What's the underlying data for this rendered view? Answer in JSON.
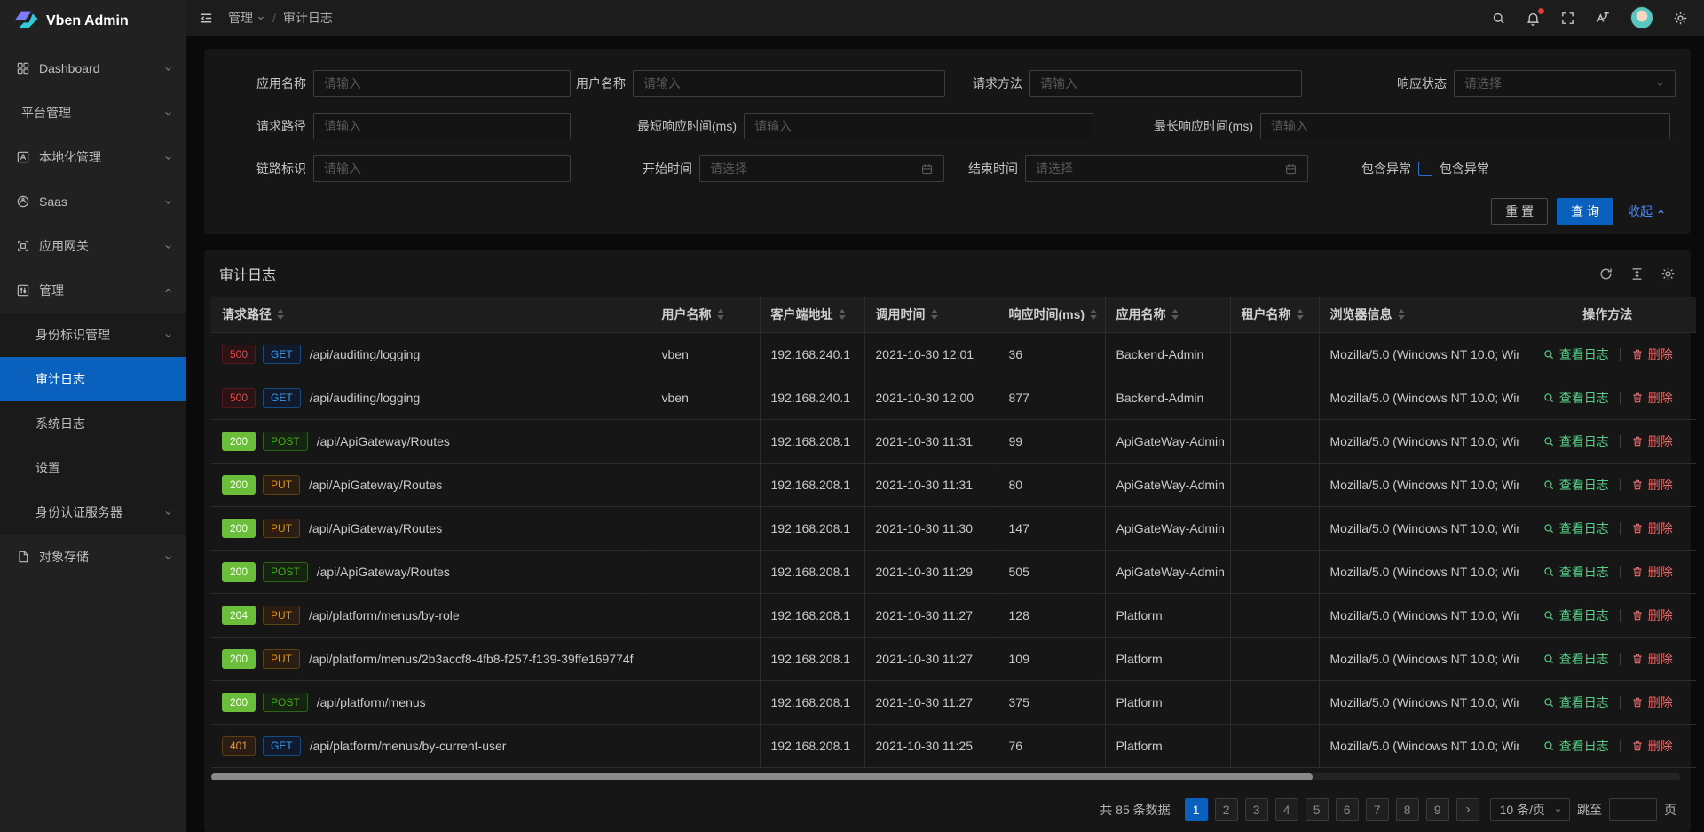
{
  "brand": {
    "name": "Vben Admin"
  },
  "header": {
    "breadcrumb": {
      "parent": "管理",
      "current": "审计日志",
      "separator": "/"
    }
  },
  "sidebar": {
    "items": [
      {
        "label": "Dashboard",
        "icon": "dashboard-icon",
        "chevron": "down",
        "level": 1
      },
      {
        "label": "平台管理",
        "chevron": "down",
        "level": 1,
        "no_icon": true
      },
      {
        "label": "本地化管理",
        "icon": "localization-icon",
        "chevron": "down",
        "level": 1
      },
      {
        "label": "Saas",
        "icon": "saas-icon",
        "chevron": "down",
        "level": 1
      },
      {
        "label": "应用网关",
        "icon": "gateway-icon",
        "chevron": "down",
        "level": 1
      },
      {
        "label": "管理",
        "icon": "management-icon",
        "chevron": "up",
        "level": 1,
        "expanded": true
      },
      {
        "label": "身份标识管理",
        "chevron": "down",
        "level": 2
      },
      {
        "label": "审计日志",
        "level": 2,
        "active": true
      },
      {
        "label": "系统日志",
        "level": 2
      },
      {
        "label": "设置",
        "level": 2
      },
      {
        "label": "身份认证服务器",
        "chevron": "down",
        "level": 2
      },
      {
        "label": "对象存储",
        "icon": "storage-icon",
        "chevron": "down",
        "level": 1
      }
    ]
  },
  "filter": {
    "rows": [
      [
        {
          "label": "应用名称",
          "ph": "请输入",
          "type": "text"
        },
        {
          "label": "用户名称",
          "ph": "请输入",
          "type": "text"
        },
        {
          "label": "请求方法",
          "ph": "请输入",
          "type": "text"
        },
        {
          "label": "响应状态",
          "ph": "请选择",
          "type": "select"
        }
      ],
      [
        {
          "label": "请求路径",
          "ph": "请输入",
          "type": "text"
        },
        {
          "label": "最短响应时间(ms)",
          "ph": "请输入",
          "type": "text"
        },
        {
          "label": "最长响应时间(ms)",
          "ph": "请输入",
          "type": "text"
        }
      ],
      [
        {
          "label": "链路标识",
          "ph": "请输入",
          "type": "text"
        },
        {
          "label": "开始时间",
          "ph": "请选择",
          "type": "date"
        },
        {
          "label": "结束时间",
          "ph": "请选择",
          "type": "date"
        },
        {
          "label": "包含异常",
          "type": "checkbox",
          "cb_label": "包含异常"
        }
      ]
    ],
    "reset_label": "重 置",
    "search_label": "查 询",
    "collapse_label": "收起"
  },
  "table": {
    "title": "审计日志",
    "columns": [
      {
        "label": "请求路径",
        "sortable": true
      },
      {
        "label": "用户名称",
        "sortable": true
      },
      {
        "label": "客户端地址",
        "sortable": true
      },
      {
        "label": "调用时间",
        "sortable": true
      },
      {
        "label": "响应时间(ms)",
        "sortable": true
      },
      {
        "label": "应用名称",
        "sortable": true
      },
      {
        "label": "租户名称",
        "sortable": true
      },
      {
        "label": "浏览器信息",
        "sortable": true
      },
      {
        "label": "操作方法",
        "sortable": false
      }
    ],
    "rows": [
      {
        "status": "500",
        "method": "GET",
        "path": "/api/auditing/logging",
        "user": "vben",
        "ip": "192.168.240.1",
        "time": "2021-10-30 12:01",
        "ms": "36",
        "app": "Backend-Admin",
        "tenant": "",
        "browser": "Mozilla/5.0 (Windows NT 10.0; Win"
      },
      {
        "status": "500",
        "method": "GET",
        "path": "/api/auditing/logging",
        "user": "vben",
        "ip": "192.168.240.1",
        "time": "2021-10-30 12:00",
        "ms": "877",
        "app": "Backend-Admin",
        "tenant": "",
        "browser": "Mozilla/5.0 (Windows NT 10.0; Win"
      },
      {
        "status": "200",
        "method": "POST",
        "path": "/api/ApiGateway/Routes",
        "user": "",
        "ip": "192.168.208.1",
        "time": "2021-10-30 11:31",
        "ms": "99",
        "app": "ApiGateWay-Admin",
        "tenant": "",
        "browser": "Mozilla/5.0 (Windows NT 10.0; Win"
      },
      {
        "status": "200",
        "method": "PUT",
        "path": "/api/ApiGateway/Routes",
        "user": "",
        "ip": "192.168.208.1",
        "time": "2021-10-30 11:31",
        "ms": "80",
        "app": "ApiGateWay-Admin",
        "tenant": "",
        "browser": "Mozilla/5.0 (Windows NT 10.0; Win"
      },
      {
        "status": "200",
        "method": "PUT",
        "path": "/api/ApiGateway/Routes",
        "user": "",
        "ip": "192.168.208.1",
        "time": "2021-10-30 11:30",
        "ms": "147",
        "app": "ApiGateWay-Admin",
        "tenant": "",
        "browser": "Mozilla/5.0 (Windows NT 10.0; Win"
      },
      {
        "status": "200",
        "method": "POST",
        "path": "/api/ApiGateway/Routes",
        "user": "",
        "ip": "192.168.208.1",
        "time": "2021-10-30 11:29",
        "ms": "505",
        "app": "ApiGateWay-Admin",
        "tenant": "",
        "browser": "Mozilla/5.0 (Windows NT 10.0; Win"
      },
      {
        "status": "204",
        "method": "PUT",
        "path": "/api/platform/menus/by-role",
        "user": "",
        "ip": "192.168.208.1",
        "time": "2021-10-30 11:27",
        "ms": "128",
        "app": "Platform",
        "tenant": "",
        "browser": "Mozilla/5.0 (Windows NT 10.0; Win"
      },
      {
        "status": "200",
        "method": "PUT",
        "path": "/api/platform/menus/2b3accf8-4fb8-f257-f139-39ffe169774f",
        "user": "",
        "ip": "192.168.208.1",
        "time": "2021-10-30 11:27",
        "ms": "109",
        "app": "Platform",
        "tenant": "",
        "browser": "Mozilla/5.0 (Windows NT 10.0; Win"
      },
      {
        "status": "200",
        "method": "POST",
        "path": "/api/platform/menus",
        "user": "",
        "ip": "192.168.208.1",
        "time": "2021-10-30 11:27",
        "ms": "375",
        "app": "Platform",
        "tenant": "",
        "browser": "Mozilla/5.0 (Windows NT 10.0; Win"
      },
      {
        "status": "401",
        "method": "GET",
        "path": "/api/platform/menus/by-current-user",
        "user": "",
        "ip": "192.168.208.1",
        "time": "2021-10-30 11:25",
        "ms": "76",
        "app": "Platform",
        "tenant": "",
        "browser": "Mozilla/5.0 (Windows NT 10.0; Win"
      }
    ],
    "actions": {
      "view": "查看日志",
      "delete": "删除"
    }
  },
  "pagination": {
    "total": "共 85 条数据",
    "pages": [
      "1",
      "2",
      "3",
      "4",
      "5",
      "6",
      "7",
      "8",
      "9"
    ],
    "active": "1",
    "page_size": "10 条/页",
    "jump_label": "跳至",
    "page_unit": "页"
  },
  "colors": {
    "primary": "#0960bd",
    "status_ok": "#6abe39",
    "status_error": "#e84749",
    "status_warn": "#e89a3c",
    "action_view": "#55d187",
    "action_delete": "#ed6f6f"
  }
}
